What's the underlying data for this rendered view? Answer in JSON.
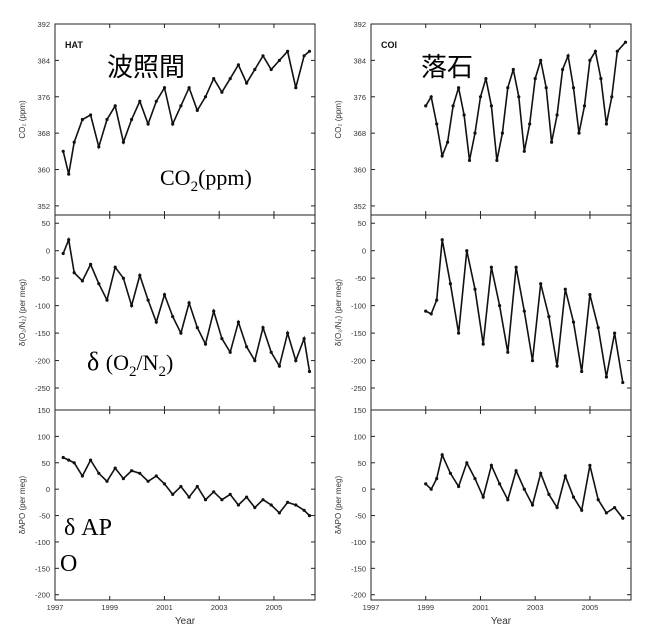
{
  "chart_data": [
    {
      "type": "line",
      "site_label": "HAT",
      "japanese_label": "波照間",
      "ylabel_html": "CO₂ (ppm)",
      "ylim": [
        350,
        392
      ],
      "yticks": [
        352,
        360,
        368,
        376,
        384,
        392
      ],
      "xlim": [
        1997,
        2006.5
      ],
      "series": [
        {
          "x": [
            1997.3,
            1997.5,
            1997.7,
            1998.0,
            1998.3,
            1998.6,
            1998.9,
            1999.2,
            1999.5,
            1999.8,
            2000.1,
            2000.4,
            2000.7,
            2001.0,
            2001.3,
            2001.6,
            2001.9,
            2002.2,
            2002.5,
            2002.8,
            2003.1,
            2003.4,
            2003.7,
            2004.0,
            2004.3,
            2004.6,
            2004.9,
            2005.2,
            2005.5,
            2005.8,
            2006.1,
            2006.3
          ],
          "values": [
            364,
            359,
            366,
            371,
            372,
            365,
            371,
            374,
            366,
            371,
            375,
            370,
            375,
            378,
            370,
            374,
            378,
            373,
            376,
            380,
            377,
            380,
            383,
            379,
            382,
            385,
            382,
            384,
            386,
            378,
            385,
            386
          ]
        }
      ]
    },
    {
      "type": "line",
      "site_label": "HAT",
      "japanese_label": "",
      "ylabel_html": "δ(O₂/N₂) (per meg)",
      "ylim": [
        -290,
        65
      ],
      "yticks": [
        50,
        0,
        -50,
        -100,
        -150,
        -200,
        -250
      ],
      "xlim": [
        1997,
        2006.5
      ],
      "series": [
        {
          "x": [
            1997.3,
            1997.5,
            1997.7,
            1998.0,
            1998.3,
            1998.6,
            1998.9,
            1999.2,
            1999.5,
            1999.8,
            2000.1,
            2000.4,
            2000.7,
            2001.0,
            2001.3,
            2001.6,
            2001.9,
            2002.2,
            2002.5,
            2002.8,
            2003.1,
            2003.4,
            2003.7,
            2004.0,
            2004.3,
            2004.6,
            2004.9,
            2005.2,
            2005.5,
            2005.8,
            2006.1,
            2006.3
          ],
          "values": [
            -5,
            20,
            -40,
            -55,
            -25,
            -60,
            -90,
            -30,
            -50,
            -100,
            -45,
            -90,
            -130,
            -80,
            -120,
            -150,
            -95,
            -140,
            -170,
            -110,
            -160,
            -185,
            -130,
            -175,
            -200,
            -140,
            -185,
            -210,
            -150,
            -200,
            -160,
            -220
          ]
        }
      ]
    },
    {
      "type": "line",
      "site_label": "HAT",
      "japanese_label": "",
      "ylabel_html": "δAPO (per meg)",
      "ylim": [
        -210,
        150
      ],
      "yticks": [
        150,
        100,
        50,
        0,
        -50,
        -100,
        -150,
        -200
      ],
      "xlim": [
        1997,
        2006.5
      ],
      "xticks": [
        1997,
        1999,
        2001,
        2003,
        2005
      ],
      "xlabel": "Year",
      "series": [
        {
          "x": [
            1997.3,
            1997.5,
            1997.7,
            1998.0,
            1998.3,
            1998.6,
            1998.9,
            1999.2,
            1999.5,
            1999.8,
            2000.1,
            2000.4,
            2000.7,
            2001.0,
            2001.3,
            2001.6,
            2001.9,
            2002.2,
            2002.5,
            2002.8,
            2003.1,
            2003.4,
            2003.7,
            2004.0,
            2004.3,
            2004.6,
            2004.9,
            2005.2,
            2005.5,
            2005.8,
            2006.1,
            2006.3
          ],
          "values": [
            60,
            55,
            50,
            25,
            55,
            30,
            15,
            40,
            20,
            35,
            30,
            15,
            25,
            10,
            -10,
            5,
            -15,
            5,
            -20,
            -5,
            -20,
            -10,
            -30,
            -15,
            -35,
            -20,
            -30,
            -45,
            -25,
            -30,
            -40,
            -50
          ]
        }
      ]
    },
    {
      "type": "line",
      "site_label": "COI",
      "japanese_label": "落石",
      "ylabel_html": "CO₂ (ppm)",
      "ylim": [
        350,
        392
      ],
      "yticks": [
        352,
        360,
        368,
        376,
        384,
        392
      ],
      "xlim": [
        1997,
        2006.5
      ],
      "series": [
        {
          "x": [
            1999.0,
            1999.2,
            1999.4,
            1999.6,
            1999.8,
            2000.0,
            2000.2,
            2000.4,
            2000.6,
            2000.8,
            2001.0,
            2001.2,
            2001.4,
            2001.6,
            2001.8,
            2002.0,
            2002.2,
            2002.4,
            2002.6,
            2002.8,
            2003.0,
            2003.2,
            2003.4,
            2003.6,
            2003.8,
            2004.0,
            2004.2,
            2004.4,
            2004.6,
            2004.8,
            2005.0,
            2005.2,
            2005.4,
            2005.6,
            2005.8,
            2006.0,
            2006.3
          ],
          "values": [
            374,
            376,
            370,
            363,
            366,
            374,
            378,
            372,
            362,
            368,
            376,
            380,
            374,
            362,
            368,
            378,
            382,
            376,
            364,
            370,
            380,
            384,
            378,
            366,
            372,
            382,
            385,
            378,
            368,
            374,
            384,
            386,
            380,
            370,
            376,
            386,
            388
          ]
        }
      ]
    },
    {
      "type": "line",
      "site_label": "COI",
      "japanese_label": "",
      "ylabel_html": "δ(O₂/N₂) (per meg)",
      "ylim": [
        -290,
        65
      ],
      "yticks": [
        50,
        0,
        -50,
        -100,
        -150,
        -200,
        -250
      ],
      "xlim": [
        1997,
        2006.5
      ],
      "series": [
        {
          "x": [
            1999.0,
            1999.2,
            1999.4,
            1999.6,
            1999.9,
            2000.2,
            2000.5,
            2000.8,
            2001.1,
            2001.4,
            2001.7,
            2002.0,
            2002.3,
            2002.6,
            2002.9,
            2003.2,
            2003.5,
            2003.8,
            2004.1,
            2004.4,
            2004.7,
            2005.0,
            2005.3,
            2005.6,
            2005.9,
            2006.2
          ],
          "values": [
            -110,
            -115,
            -90,
            20,
            -60,
            -150,
            0,
            -70,
            -170,
            -30,
            -100,
            -185,
            -30,
            -110,
            -200,
            -60,
            -120,
            -210,
            -70,
            -130,
            -220,
            -80,
            -140,
            -230,
            -150,
            -240
          ]
        }
      ]
    },
    {
      "type": "line",
      "site_label": "COI",
      "japanese_label": "",
      "ylabel_html": "δAPO (per meg)",
      "ylim": [
        -210,
        150
      ],
      "yticks": [
        150,
        100,
        50,
        0,
        -50,
        -100,
        -150,
        -200
      ],
      "xlim": [
        1997,
        2006.5
      ],
      "xticks": [
        1997,
        1999,
        2001,
        2003,
        2005
      ],
      "xlabel": "Year",
      "series": [
        {
          "x": [
            1999.0,
            1999.2,
            1999.4,
            1999.6,
            1999.9,
            2000.2,
            2000.5,
            2000.8,
            2001.1,
            2001.4,
            2001.7,
            2002.0,
            2002.3,
            2002.6,
            2002.9,
            2003.2,
            2003.5,
            2003.8,
            2004.1,
            2004.4,
            2004.7,
            2005.0,
            2005.3,
            2005.6,
            2005.9,
            2006.2
          ],
          "values": [
            10,
            0,
            20,
            65,
            30,
            5,
            50,
            20,
            -15,
            45,
            10,
            -20,
            35,
            0,
            -30,
            30,
            -10,
            -35,
            25,
            -15,
            -40,
            45,
            -20,
            -45,
            -35,
            -55
          ]
        }
      ]
    }
  ],
  "overlays": {
    "co2": "CO",
    "co2_sub": "2",
    "co2_unit": "(ppm)",
    "o2_delta": "δ",
    "o2_paren": "(O",
    "o2_sub1": "2",
    "o2_slash": "/N",
    "o2_sub2": "2",
    "o2_close": ")",
    "apo_line1": "δ AP",
    "apo_line2": "O"
  },
  "colors": {
    "axis": "#222222",
    "data": "#111111"
  }
}
